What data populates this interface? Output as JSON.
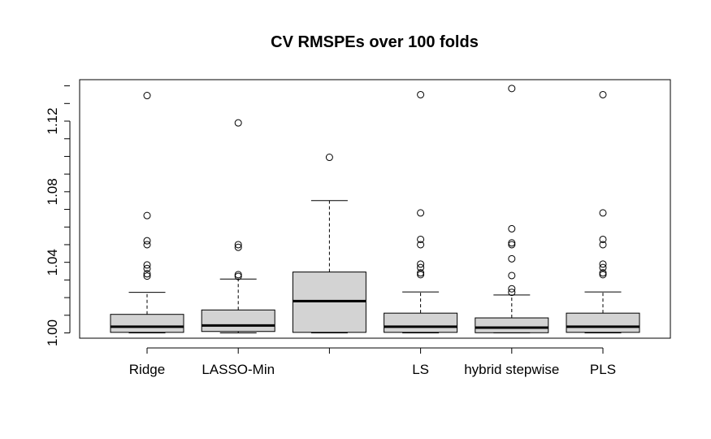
{
  "chart_data": {
    "type": "boxplot",
    "title": "CV RMSPEs over 100 folds",
    "xlabel": "",
    "ylabel": "",
    "ylim": [
      0.997,
      1.1435
    ],
    "yticks": [
      1.0,
      1.04,
      1.08,
      1.12
    ],
    "ytick_labels": [
      "1.00",
      "1.04",
      "1.08",
      "1.12"
    ],
    "grid": false,
    "legend": "none",
    "box_fill": "#d3d3d3",
    "categories": [
      "Ridge",
      "LASSO-Min",
      "",
      "LS",
      "hybrid stepwise",
      "PLS"
    ],
    "boxes": [
      {
        "label": "Ridge",
        "min": 1.0,
        "q1": 1.0003,
        "median": 1.0035,
        "q3": 1.0105,
        "max": 1.023,
        "outliers": [
          1.1345,
          1.0665,
          1.0522,
          1.05,
          1.0385,
          1.0365,
          1.0335,
          1.0322
        ]
      },
      {
        "label": "LASSO-Min",
        "min": 1.0,
        "q1": 1.0008,
        "median": 1.0042,
        "q3": 1.013,
        "max": 1.0305,
        "outliers": [
          1.119,
          1.05,
          1.0485,
          1.033,
          1.032
        ]
      },
      {
        "label": "",
        "min": 1.0,
        "q1": 1.0003,
        "median": 1.018,
        "q3": 1.0345,
        "max": 1.075,
        "outliers": [
          1.0995
        ]
      },
      {
        "label": "LS",
        "min": 1.0,
        "q1": 1.0003,
        "median": 1.0035,
        "q3": 1.0112,
        "max": 1.0232,
        "outliers": [
          1.135,
          1.068,
          1.053,
          1.05,
          1.039,
          1.037,
          1.034,
          1.033
        ]
      },
      {
        "label": "hybrid stepwise",
        "min": 1.0,
        "q1": 1.0001,
        "median": 1.003,
        "q3": 1.0085,
        "max": 1.0215,
        "outliers": [
          1.1385,
          1.059,
          1.051,
          1.05,
          1.042,
          1.0325,
          1.025,
          1.023
        ]
      },
      {
        "label": "PLS",
        "min": 1.0,
        "q1": 1.0003,
        "median": 1.0035,
        "q3": 1.0112,
        "max": 1.0232,
        "outliers": [
          1.135,
          1.068,
          1.053,
          1.05,
          1.039,
          1.037,
          1.034,
          1.033
        ]
      }
    ]
  }
}
